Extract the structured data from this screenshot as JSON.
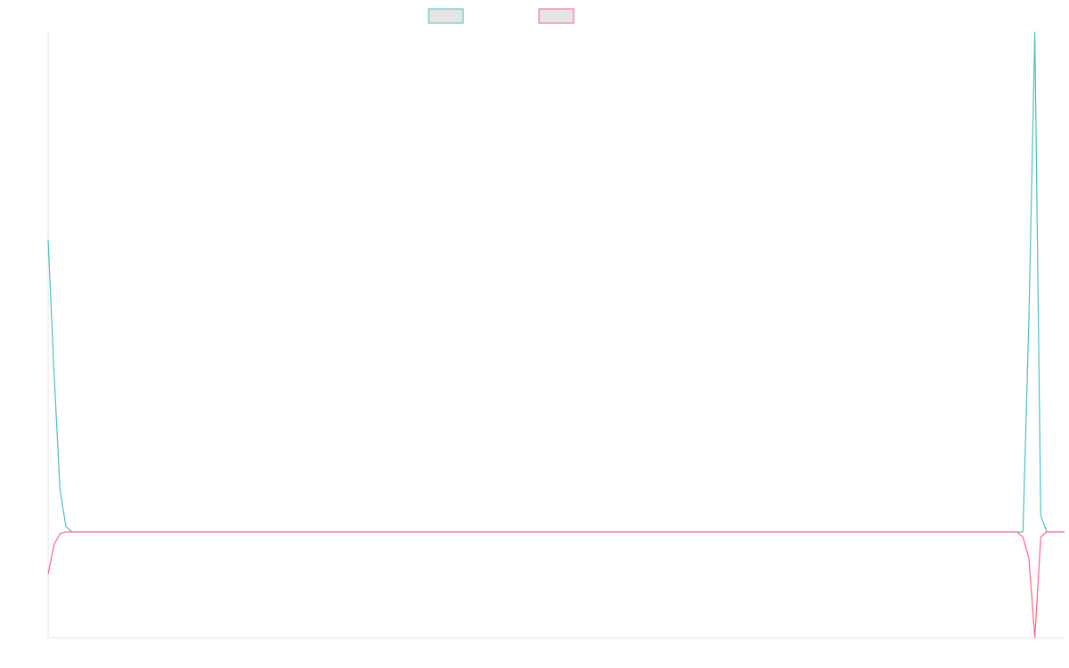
{
  "chart_data": {
    "type": "line",
    "title": "",
    "xlabel": "",
    "ylabel": "",
    "grid": false,
    "legend_position": "top",
    "ylim": [
      -1.0,
      4.72
    ],
    "x": [
      0,
      1,
      2,
      3,
      4,
      5,
      6,
      7,
      8,
      9,
      10,
      11,
      12,
      13,
      14,
      15,
      16,
      17,
      18,
      19,
      20,
      21,
      22,
      23,
      24,
      25,
      26,
      27,
      28,
      29,
      30,
      31,
      32,
      33,
      34,
      35,
      36,
      37,
      38,
      39,
      40,
      41,
      42,
      43,
      44,
      45,
      46,
      47,
      48,
      49,
      50,
      51,
      52,
      53,
      54,
      55,
      56,
      57,
      58,
      59,
      60,
      61,
      62,
      63,
      64,
      65,
      66,
      67,
      68,
      69,
      70,
      71,
      72,
      73,
      74,
      75,
      76,
      77,
      78,
      79,
      80,
      81,
      82,
      83,
      84,
      85,
      86,
      87,
      88,
      89,
      90,
      91,
      92,
      93,
      94,
      95,
      96,
      97,
      98,
      99,
      100,
      101,
      102,
      103,
      104,
      105,
      106,
      107,
      108,
      109,
      110,
      111,
      112,
      113,
      114,
      115,
      116,
      117,
      118,
      119,
      120,
      121,
      122,
      123,
      124,
      125,
      126,
      127,
      128,
      129,
      130,
      131,
      132,
      133,
      134,
      135,
      136,
      137,
      138,
      139,
      140,
      141,
      142,
      143,
      144,
      145,
      146,
      147,
      148,
      149,
      150,
      151,
      152,
      153,
      154,
      155,
      156,
      157,
      158,
      159,
      160,
      161,
      162,
      163,
      164,
      165,
      166,
      167,
      168,
      169,
      170,
      171
    ],
    "series": [
      {
        "name": "",
        "color": "#4bc0c0",
        "fill": "#e5e5e5",
        "values": [
          2.76,
          1.5,
          0.4,
          0.05,
          0,
          0,
          0,
          0,
          0,
          0,
          0,
          0,
          0,
          0,
          0,
          0,
          0,
          0,
          0,
          0,
          0,
          0,
          0,
          0,
          0,
          0,
          0,
          0,
          0,
          0,
          0,
          0,
          0,
          0,
          0,
          0,
          0,
          0,
          0,
          0,
          0,
          0,
          0,
          0,
          0,
          0,
          0,
          0,
          0,
          0,
          0,
          0,
          0,
          0,
          0,
          0,
          0,
          0,
          0,
          0,
          0,
          0,
          0,
          0,
          0,
          0,
          0,
          0,
          0,
          0,
          0,
          0,
          0,
          0,
          0,
          0,
          0,
          0,
          0,
          0,
          0,
          0,
          0,
          0,
          0,
          0,
          0,
          0,
          0,
          0,
          0,
          0,
          0,
          0,
          0,
          0,
          0,
          0,
          0,
          0,
          0,
          0,
          0,
          0,
          0,
          0,
          0,
          0,
          0,
          0,
          0,
          0,
          0,
          0,
          0,
          0,
          0,
          0,
          0,
          0,
          0,
          0,
          0,
          0,
          0,
          0,
          0,
          0,
          0,
          0,
          0,
          0,
          0,
          0,
          0,
          0,
          0,
          0,
          0,
          0,
          0,
          0,
          0,
          0,
          0,
          0,
          0,
          0,
          0,
          0,
          0,
          0,
          0,
          0,
          0,
          0,
          0,
          0,
          0,
          0,
          0,
          0,
          0,
          0,
          0,
          2.0,
          4.72,
          0.15,
          0,
          0,
          0,
          0
        ]
      },
      {
        "name": "",
        "color": "#ff6384",
        "fill": "#e5e5e5",
        "values": [
          -0.4,
          -0.12,
          -0.02,
          0,
          0,
          0,
          0,
          0,
          0,
          0,
          0,
          0,
          0,
          0,
          0,
          0,
          0,
          0,
          0,
          0,
          0,
          0,
          0,
          0,
          0,
          0,
          0,
          0,
          0,
          0,
          0,
          0,
          0,
          0,
          0,
          0,
          0,
          0,
          0,
          0,
          0,
          0,
          0,
          0,
          0,
          0,
          0,
          0,
          0,
          0,
          0,
          0,
          0,
          0,
          0,
          0,
          0,
          0,
          0,
          0,
          0,
          0,
          0,
          0,
          0,
          0,
          0,
          0,
          0,
          0,
          0,
          0,
          0,
          0,
          0,
          0,
          0,
          0,
          0,
          0,
          0,
          0,
          0,
          0,
          0,
          0,
          0,
          0,
          0,
          0,
          0,
          0,
          0,
          0,
          0,
          0,
          0,
          0,
          0,
          0,
          0,
          0,
          0,
          0,
          0,
          0,
          0,
          0,
          0,
          0,
          0,
          0,
          0,
          0,
          0,
          0,
          0,
          0,
          0,
          0,
          0,
          0,
          0,
          0,
          0,
          0,
          0,
          0,
          0,
          0,
          0,
          0,
          0,
          0,
          0,
          0,
          0,
          0,
          0,
          0,
          0,
          0,
          0,
          0,
          0,
          0,
          0,
          0,
          0,
          0,
          0,
          0,
          0,
          0,
          0,
          0,
          0,
          0,
          0,
          0,
          0,
          0,
          0,
          0,
          -0.05,
          -0.25,
          -1.0,
          -0.05,
          0,
          0,
          0,
          0
        ]
      }
    ]
  }
}
